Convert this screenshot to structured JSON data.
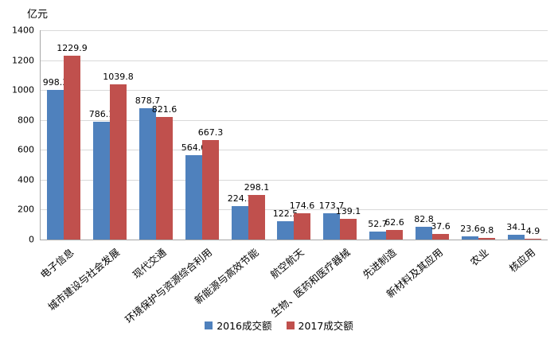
{
  "chart_data": {
    "type": "bar",
    "title": "",
    "unit": "亿元",
    "xlabel": "",
    "ylabel": "亿元",
    "categories": [
      "电子信息",
      "城市建设与社会发展",
      "现代交通",
      "环境保护与资源综合利用",
      "新能源与高效节能",
      "航空航天",
      "生物、医药和医疗器械",
      "先进制造",
      "新材料及其应用",
      "农业",
      "核应用"
    ],
    "series": [
      {
        "name": "2016成交额",
        "color": "#4F81BD",
        "values": [
          998.3,
          786.1,
          878.7,
          564.0,
          224.1,
          122.5,
          173.7,
          52.7,
          82.8,
          23.6,
          34.1
        ],
        "labels": [
          "998.3",
          "786.1",
          "878.7",
          "564.0",
          "224.1",
          "122.5",
          "173.7",
          "52.7",
          "82.8",
          "23.6",
          "34.1"
        ]
      },
      {
        "name": "2017成交额",
        "color": "#C0504D",
        "values": [
          1229.9,
          1039.8,
          821.6,
          667.3,
          298.1,
          174.6,
          139.1,
          62.6,
          37.6,
          9.8,
          4.9
        ],
        "labels": [
          "1229.9",
          "1039.8",
          "821.6",
          "667.3",
          "298.1",
          "174.6",
          "139.1",
          "62.6",
          "37.6",
          "9.8",
          "4.9"
        ]
      }
    ],
    "ylim": [
      0,
      1400
    ],
    "ytick_step": 200,
    "grid": true,
    "legend_position": "bottom"
  }
}
